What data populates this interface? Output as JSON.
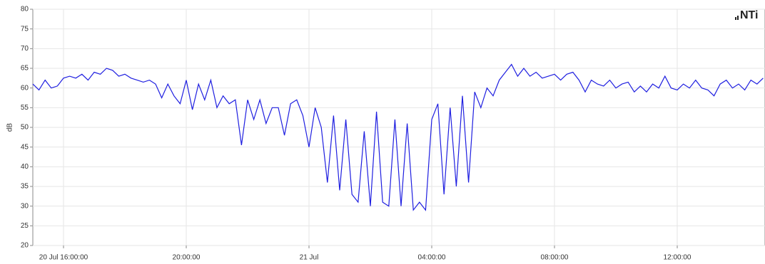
{
  "chart_data": {
    "type": "line",
    "ylabel": "dB",
    "logo": "NTi",
    "x": [
      15.0,
      15.2,
      15.4,
      15.6,
      15.8,
      16.0,
      16.2,
      16.4,
      16.6,
      16.8,
      17.0,
      17.2,
      17.4,
      17.6,
      17.8,
      18.0,
      18.2,
      18.4,
      18.6,
      18.8,
      19.0,
      19.2,
      19.4,
      19.6,
      19.8,
      20.0,
      20.2,
      20.4,
      20.6,
      20.8,
      21.0,
      21.2,
      21.4,
      21.6,
      21.8,
      22.0,
      22.2,
      22.4,
      22.6,
      22.8,
      23.0,
      23.2,
      23.4,
      23.6,
      23.8,
      24.0,
      24.2,
      24.4,
      24.6,
      24.8,
      25.0,
      25.2,
      25.4,
      25.6,
      25.8,
      26.0,
      26.2,
      26.4,
      26.6,
      26.8,
      27.0,
      27.2,
      27.4,
      27.6,
      27.8,
      28.0,
      28.2,
      28.4,
      28.6,
      28.8,
      29.0,
      29.2,
      29.4,
      29.6,
      29.8,
      30.0,
      30.2,
      30.4,
      30.6,
      30.8,
      31.0,
      31.2,
      31.4,
      31.6,
      31.8,
      32.0,
      32.2,
      32.4,
      32.6,
      32.8,
      33.0,
      33.2,
      33.4,
      33.6,
      33.8,
      34.0,
      34.2,
      34.4,
      34.6,
      34.8,
      35.0,
      35.2,
      35.4,
      35.6,
      35.8,
      36.0,
      36.2,
      36.4,
      36.6,
      36.8,
      37.0,
      37.2,
      37.4,
      37.6,
      37.8,
      38.0,
      38.2,
      38.4,
      38.6,
      38.8
    ],
    "series": [
      {
        "color": "#1f1fe0",
        "values": [
          61,
          59.5,
          62,
          60,
          60.5,
          62.5,
          63,
          62.5,
          63.5,
          62,
          64,
          63.5,
          65,
          64.5,
          63,
          63.5,
          62.5,
          62,
          61.5,
          62,
          61,
          57.5,
          61,
          58,
          56,
          62,
          54.5,
          61,
          57,
          62,
          55,
          58,
          56,
          57,
          45.5,
          57,
          52,
          57,
          51,
          55,
          55,
          48,
          56,
          57,
          53,
          45,
          55,
          50,
          36,
          53,
          34,
          52,
          33,
          31,
          49,
          30,
          54,
          31,
          30,
          52,
          30,
          51,
          29,
          31,
          29,
          52,
          56,
          33,
          55,
          35,
          58,
          36,
          59,
          55,
          60,
          58,
          62,
          64,
          66,
          63,
          65,
          63,
          64,
          62.5,
          63,
          63.5,
          62,
          63.5,
          64,
          62,
          59,
          62,
          61,
          60.5,
          62,
          60,
          61,
          61.5,
          59,
          60.5,
          59,
          61,
          60,
          63,
          60,
          59.5,
          61,
          60,
          62,
          60,
          59.5,
          58,
          61,
          62,
          60,
          61,
          59.5,
          62,
          61,
          62.5
        ]
      }
    ],
    "xlim": [
      15,
      38.86
    ],
    "ylim": [
      20,
      80
    ],
    "xticks": [
      {
        "value": 16,
        "label": "20 Jul 16:00:00"
      },
      {
        "value": 20,
        "label": "20:00:00"
      },
      {
        "value": 24,
        "label": "21 Jul"
      },
      {
        "value": 28,
        "label": "04:00:00"
      },
      {
        "value": 32,
        "label": "08:00:00"
      },
      {
        "value": 36,
        "label": "12:00:00"
      }
    ],
    "yticks": [
      20,
      25,
      30,
      35,
      40,
      45,
      50,
      55,
      60,
      65,
      70,
      75,
      80
    ],
    "grid": true
  }
}
